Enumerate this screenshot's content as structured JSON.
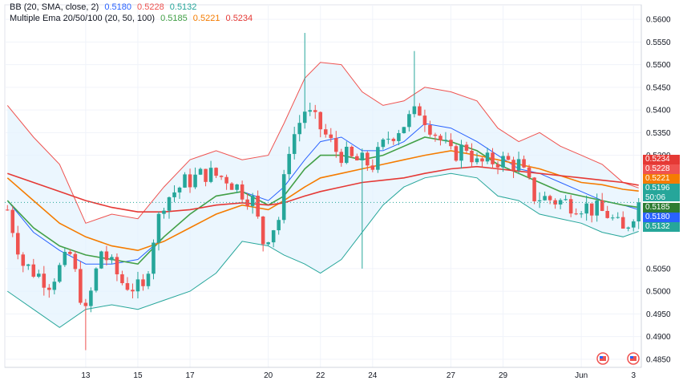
{
  "legend": {
    "bb": {
      "label": "BB (20, SMA, close, 2)",
      "basis": "0.5180",
      "upper": "0.5228",
      "lower": "0.5132"
    },
    "ema": {
      "label": "Multiple Ema 20/50/100 (20, 50, 100)",
      "ema20": "0.5185",
      "ema50": "0.5221",
      "ema100": "0.5234"
    }
  },
  "colors": {
    "up": "#26a69a",
    "down": "#ef5350",
    "bb_upper": "#ef5350",
    "bb_basis": "#2962ff",
    "bb_lower": "#26a69a",
    "ema20": "#43a047",
    "ema50": "#f57c00",
    "ema100": "#e53935",
    "band_fill": "#e3f2fd"
  },
  "price_tags": [
    {
      "name": "ema100",
      "value": "0.5234",
      "color": "#e53935"
    },
    {
      "name": "bb-upper",
      "value": "0.5228",
      "color": "#ef5350"
    },
    {
      "name": "ema50",
      "value": "0.5221",
      "color": "#f57c00"
    },
    {
      "name": "last-price",
      "value": "0.5196",
      "sub": "50:06",
      "color": "#26a69a"
    },
    {
      "name": "ema20",
      "value": "0.5185",
      "color": "#2e7d32"
    },
    {
      "name": "bb-basis",
      "value": "0.5180",
      "color": "#2962ff"
    },
    {
      "name": "bb-lower",
      "value": "0.5132",
      "color": "#26a69a"
    }
  ],
  "chart_data": {
    "type": "candlestick",
    "title": "",
    "y_ticks": [
      "0.5600",
      "0.5550",
      "0.5500",
      "0.5450",
      "0.5400",
      "0.5350",
      "0.5300",
      "0.5050",
      "0.5000",
      "0.4950",
      "0.4900",
      "0.4850"
    ],
    "ylim": [
      0.4832,
      0.5632
    ],
    "x_ticks": [
      {
        "label": "13",
        "i": 15
      },
      {
        "label": "15",
        "i": 25
      },
      {
        "label": "17",
        "i": 35
      },
      {
        "label": "20",
        "i": 50
      },
      {
        "label": "22",
        "i": 60
      },
      {
        "label": "24",
        "i": 70
      },
      {
        "label": "27",
        "i": 85
      },
      {
        "label": "29",
        "i": 95
      },
      {
        "label": "Jun",
        "i": 110
      },
      {
        "label": "3",
        "i": 120
      }
    ],
    "n_slots": 122,
    "last_price": 0.5196,
    "candle_keypoints": [
      [
        0,
        0.518
      ],
      [
        3,
        0.506
      ],
      [
        8,
        0.502
      ],
      [
        12,
        0.508
      ],
      [
        15,
        0.495
      ],
      [
        18,
        0.509
      ],
      [
        22,
        0.502
      ],
      [
        26,
        0.5
      ],
      [
        28,
        0.512
      ],
      [
        30,
        0.52
      ],
      [
        34,
        0.524
      ],
      [
        38,
        0.526
      ],
      [
        42,
        0.525
      ],
      [
        47,
        0.52
      ],
      [
        49,
        0.511
      ],
      [
        52,
        0.516
      ],
      [
        54,
        0.532
      ],
      [
        57,
        0.54
      ],
      [
        60,
        0.536
      ],
      [
        63,
        0.531
      ],
      [
        66,
        0.529
      ],
      [
        70,
        0.528
      ],
      [
        73,
        0.534
      ],
      [
        76,
        0.537
      ],
      [
        79,
        0.54
      ],
      [
        82,
        0.535
      ],
      [
        85,
        0.53
      ],
      [
        88,
        0.532
      ],
      [
        90,
        0.528
      ],
      [
        94,
        0.529
      ],
      [
        98,
        0.528
      ],
      [
        101,
        0.521
      ],
      [
        105,
        0.52
      ],
      [
        110,
        0.519
      ],
      [
        115,
        0.517
      ],
      [
        118,
        0.513
      ],
      [
        121,
        0.5196
      ]
    ],
    "spikes": [
      {
        "i": 57,
        "high": 0.557
      },
      {
        "i": 78,
        "high": 0.553
      },
      {
        "i": 68,
        "low": 0.505
      },
      {
        "i": 15,
        "low": 0.487
      }
    ],
    "series": [
      {
        "name": "BB upper",
        "key": "bb_upper",
        "points": [
          [
            0,
            0.541
          ],
          [
            5,
            0.534
          ],
          [
            10,
            0.528
          ],
          [
            15,
            0.515
          ],
          [
            20,
            0.517
          ],
          [
            25,
            0.516
          ],
          [
            30,
            0.523
          ],
          [
            35,
            0.529
          ],
          [
            40,
            0.531
          ],
          [
            45,
            0.529
          ],
          [
            50,
            0.53
          ],
          [
            53,
            0.537
          ],
          [
            57,
            0.547
          ],
          [
            60,
            0.5505
          ],
          [
            64,
            0.55
          ],
          [
            68,
            0.544
          ],
          [
            72,
            0.541
          ],
          [
            76,
            0.542
          ],
          [
            80,
            0.545
          ],
          [
            85,
            0.544
          ],
          [
            90,
            0.542
          ],
          [
            94,
            0.536
          ],
          [
            98,
            0.533
          ],
          [
            102,
            0.535
          ],
          [
            106,
            0.532
          ],
          [
            110,
            0.53
          ],
          [
            114,
            0.528
          ],
          [
            118,
            0.524
          ],
          [
            121,
            0.5228
          ]
        ]
      },
      {
        "name": "BB basis",
        "key": "bb_basis",
        "points": [
          [
            0,
            0.52
          ],
          [
            5,
            0.513
          ],
          [
            10,
            0.509
          ],
          [
            15,
            0.506
          ],
          [
            20,
            0.506
          ],
          [
            25,
            0.507
          ],
          [
            30,
            0.512
          ],
          [
            35,
            0.517
          ],
          [
            40,
            0.521
          ],
          [
            45,
            0.522
          ],
          [
            50,
            0.52
          ],
          [
            53,
            0.523
          ],
          [
            57,
            0.529
          ],
          [
            60,
            0.533
          ],
          [
            64,
            0.534
          ],
          [
            68,
            0.531
          ],
          [
            72,
            0.531
          ],
          [
            76,
            0.533
          ],
          [
            80,
            0.537
          ],
          [
            85,
            0.536
          ],
          [
            90,
            0.533
          ],
          [
            94,
            0.53
          ],
          [
            98,
            0.527
          ],
          [
            102,
            0.526
          ],
          [
            106,
            0.524
          ],
          [
            110,
            0.522
          ],
          [
            114,
            0.52
          ],
          [
            118,
            0.519
          ],
          [
            121,
            0.518
          ]
        ]
      },
      {
        "name": "BB lower",
        "key": "bb_lower",
        "points": [
          [
            0,
            0.5
          ],
          [
            5,
            0.496
          ],
          [
            10,
            0.492
          ],
          [
            15,
            0.496
          ],
          [
            20,
            0.497
          ],
          [
            25,
            0.496
          ],
          [
            30,
            0.498
          ],
          [
            35,
            0.5
          ],
          [
            40,
            0.504
          ],
          [
            45,
            0.511
          ],
          [
            50,
            0.51
          ],
          [
            53,
            0.508
          ],
          [
            57,
            0.506
          ],
          [
            60,
            0.504
          ],
          [
            64,
            0.507
          ],
          [
            68,
            0.513
          ],
          [
            72,
            0.519
          ],
          [
            76,
            0.523
          ],
          [
            80,
            0.525
          ],
          [
            85,
            0.526
          ],
          [
            90,
            0.525
          ],
          [
            94,
            0.521
          ],
          [
            98,
            0.52
          ],
          [
            102,
            0.517
          ],
          [
            106,
            0.516
          ],
          [
            110,
            0.515
          ],
          [
            114,
            0.513
          ],
          [
            118,
            0.512
          ],
          [
            121,
            0.5132
          ]
        ]
      },
      {
        "name": "EMA 20",
        "key": "ema20",
        "points": [
          [
            0,
            0.52
          ],
          [
            5,
            0.514
          ],
          [
            10,
            0.51
          ],
          [
            15,
            0.508
          ],
          [
            20,
            0.507
          ],
          [
            25,
            0.506
          ],
          [
            30,
            0.512
          ],
          [
            35,
            0.517
          ],
          [
            40,
            0.521
          ],
          [
            45,
            0.522
          ],
          [
            50,
            0.519
          ],
          [
            53,
            0.521
          ],
          [
            57,
            0.527
          ],
          [
            60,
            0.53
          ],
          [
            64,
            0.53
          ],
          [
            68,
            0.529
          ],
          [
            72,
            0.53
          ],
          [
            76,
            0.532
          ],
          [
            80,
            0.534
          ],
          [
            85,
            0.533
          ],
          [
            90,
            0.531
          ],
          [
            94,
            0.528
          ],
          [
            98,
            0.526
          ],
          [
            102,
            0.524
          ],
          [
            106,
            0.522
          ],
          [
            110,
            0.521
          ],
          [
            114,
            0.52
          ],
          [
            118,
            0.519
          ],
          [
            121,
            0.5185
          ]
        ]
      },
      {
        "name": "EMA 50",
        "key": "ema50",
        "points": [
          [
            0,
            0.525
          ],
          [
            5,
            0.52
          ],
          [
            10,
            0.515
          ],
          [
            15,
            0.512
          ],
          [
            20,
            0.51
          ],
          [
            25,
            0.509
          ],
          [
            30,
            0.511
          ],
          [
            35,
            0.514
          ],
          [
            40,
            0.517
          ],
          [
            45,
            0.519
          ],
          [
            50,
            0.518
          ],
          [
            53,
            0.52
          ],
          [
            57,
            0.523
          ],
          [
            60,
            0.525
          ],
          [
            64,
            0.526
          ],
          [
            68,
            0.527
          ],
          [
            72,
            0.528
          ],
          [
            76,
            0.529
          ],
          [
            80,
            0.53
          ],
          [
            85,
            0.531
          ],
          [
            90,
            0.53
          ],
          [
            94,
            0.529
          ],
          [
            98,
            0.528
          ],
          [
            102,
            0.527
          ],
          [
            106,
            0.5255
          ],
          [
            110,
            0.524
          ],
          [
            114,
            0.5235
          ],
          [
            118,
            0.5225
          ],
          [
            121,
            0.5221
          ]
        ]
      },
      {
        "name": "EMA 100",
        "key": "ema100",
        "points": [
          [
            0,
            0.526
          ],
          [
            5,
            0.524
          ],
          [
            10,
            0.522
          ],
          [
            15,
            0.52
          ],
          [
            20,
            0.5185
          ],
          [
            25,
            0.5175
          ],
          [
            30,
            0.5175
          ],
          [
            35,
            0.518
          ],
          [
            40,
            0.519
          ],
          [
            45,
            0.5195
          ],
          [
            50,
            0.519
          ],
          [
            53,
            0.5195
          ],
          [
            57,
            0.521
          ],
          [
            60,
            0.522
          ],
          [
            64,
            0.523
          ],
          [
            68,
            0.524
          ],
          [
            72,
            0.5245
          ],
          [
            76,
            0.525
          ],
          [
            80,
            0.526
          ],
          [
            85,
            0.527
          ],
          [
            90,
            0.5275
          ],
          [
            94,
            0.527
          ],
          [
            98,
            0.5265
          ],
          [
            102,
            0.526
          ],
          [
            106,
            0.5255
          ],
          [
            110,
            0.525
          ],
          [
            114,
            0.5245
          ],
          [
            118,
            0.524
          ],
          [
            121,
            0.5234
          ]
        ]
      }
    ]
  }
}
